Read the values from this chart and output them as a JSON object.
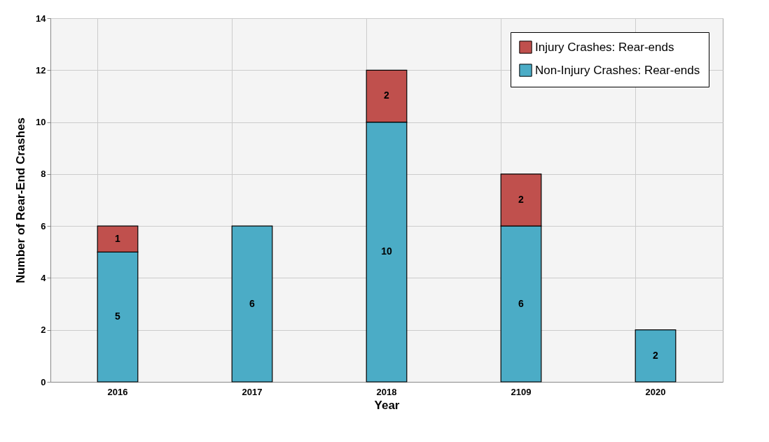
{
  "chart_data": {
    "type": "bar",
    "xlabel": "Year",
    "ylabel": "Number of  Rear-End Crashes",
    "categories": [
      "2016",
      "2017",
      "2018",
      "2109",
      "2020"
    ],
    "stacked": true,
    "series": [
      {
        "name": "Non-Injury Crashes: Rear-ends",
        "color": "#4bacc6",
        "values": [
          5,
          6,
          10,
          6,
          2
        ]
      },
      {
        "name": "Injury Crashes: Rear-ends",
        "color": "#c0504d",
        "values": [
          1,
          null,
          2,
          2,
          null
        ]
      }
    ],
    "ylim": [
      0,
      14
    ],
    "yticks": [
      0,
      2,
      4,
      6,
      8,
      10,
      12,
      14
    ],
    "grid": true,
    "legend": "top right",
    "data_labels": true
  }
}
